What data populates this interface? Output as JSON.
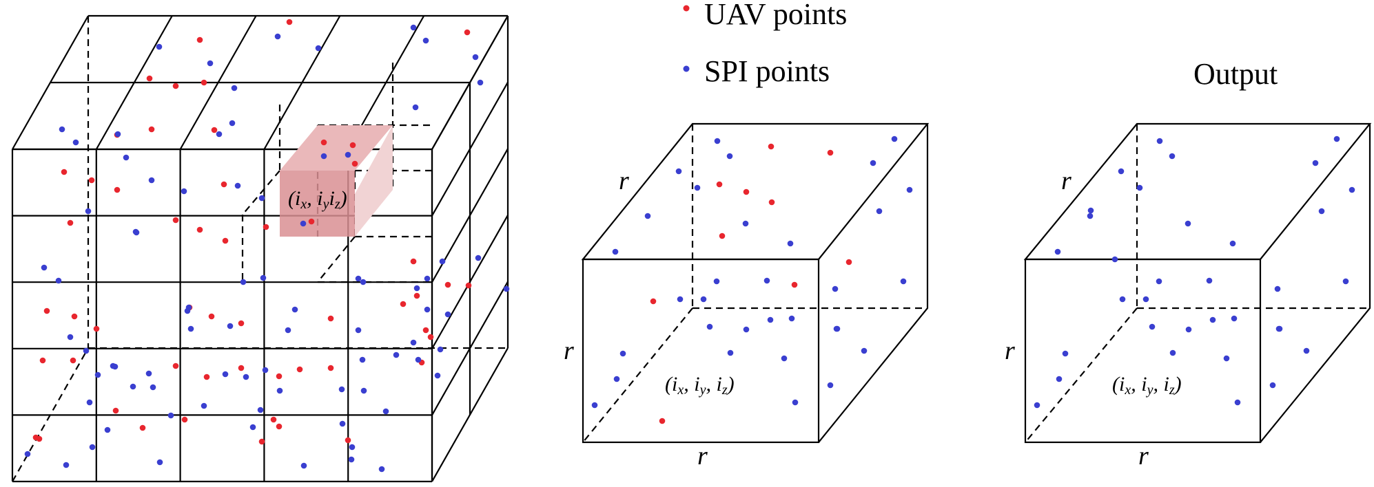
{
  "legend": {
    "uav_label": "UAV points",
    "spi_label": "SPI points"
  },
  "colors": {
    "uav": "#e8262e",
    "spi": "#3a3fd0",
    "highlight_front": "#d98f93",
    "highlight_top": "#eab8ba",
    "highlight_side": "#f1d3d4",
    "line": "#000000"
  },
  "grid_cube": {
    "cell_label": "(ix, iyiz)"
  },
  "input_cell": {
    "label_r_top": "r",
    "label_r_left": "r",
    "label_r_bottom": "r",
    "index_label": "(ix, iy, iz)"
  },
  "output_cell": {
    "title": "Output",
    "label_r_top": "r",
    "label_r_left": "r",
    "label_r_bottom": "r",
    "index_label": "(ix, iy, iz)"
  }
}
